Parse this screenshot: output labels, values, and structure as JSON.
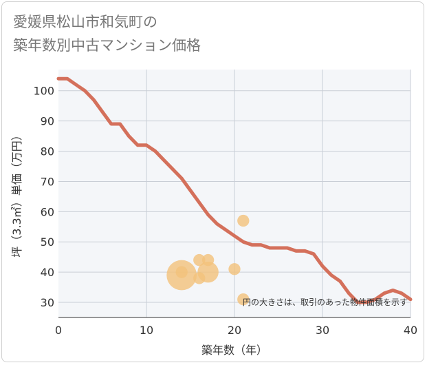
{
  "title": {
    "line1": "愛媛県松山市和気町の",
    "line2": "築年数別中古マンション価格"
  },
  "colors": {
    "line": "#d4705b",
    "bubble": "#f2c27a",
    "grid": "#c9ced6",
    "plot_bg": "#f4f6f9"
  },
  "chart_data": {
    "type": "scatter",
    "xlabel": "築年数（年）",
    "ylabel": "坪（3.3㎡）単価（万円）",
    "xlim": [
      0,
      40
    ],
    "ylim": [
      25,
      107
    ],
    "xticks": [
      0,
      10,
      20,
      30,
      40
    ],
    "yticks": [
      30,
      40,
      50,
      60,
      70,
      80,
      90,
      100
    ],
    "note": "円の大きさは、取引のあった物件面積を示す",
    "line": {
      "x": [
        0,
        1,
        2,
        3,
        4,
        5,
        6,
        7,
        8,
        9,
        10,
        11,
        12,
        13,
        14,
        15,
        16,
        17,
        18,
        19,
        20,
        21,
        22,
        23,
        24,
        25,
        26,
        27,
        28,
        29,
        30,
        31,
        32,
        33,
        34,
        35,
        36,
        37,
        38,
        39,
        40
      ],
      "y": [
        104,
        104,
        102,
        100,
        97,
        93,
        89,
        89,
        85,
        82,
        82,
        80,
        77,
        74,
        71,
        67,
        63,
        59,
        56,
        54,
        52,
        50,
        49,
        49,
        48,
        48,
        48,
        47,
        47,
        46,
        42,
        39,
        37,
        33,
        30,
        30,
        31,
        33,
        34,
        33,
        31
      ]
    },
    "bubbles": [
      {
        "x": 14,
        "y": 39,
        "size": 3.5
      },
      {
        "x": 14,
        "y": 40,
        "size": 1
      },
      {
        "x": 16,
        "y": 44,
        "size": 1
      },
      {
        "x": 16,
        "y": 38,
        "size": 1
      },
      {
        "x": 17,
        "y": 44,
        "size": 1
      },
      {
        "x": 17,
        "y": 40,
        "size": 1.7
      },
      {
        "x": 20,
        "y": 41,
        "size": 1
      },
      {
        "x": 21,
        "y": 57,
        "size": 1
      },
      {
        "x": 21,
        "y": 31,
        "size": 1
      }
    ]
  }
}
